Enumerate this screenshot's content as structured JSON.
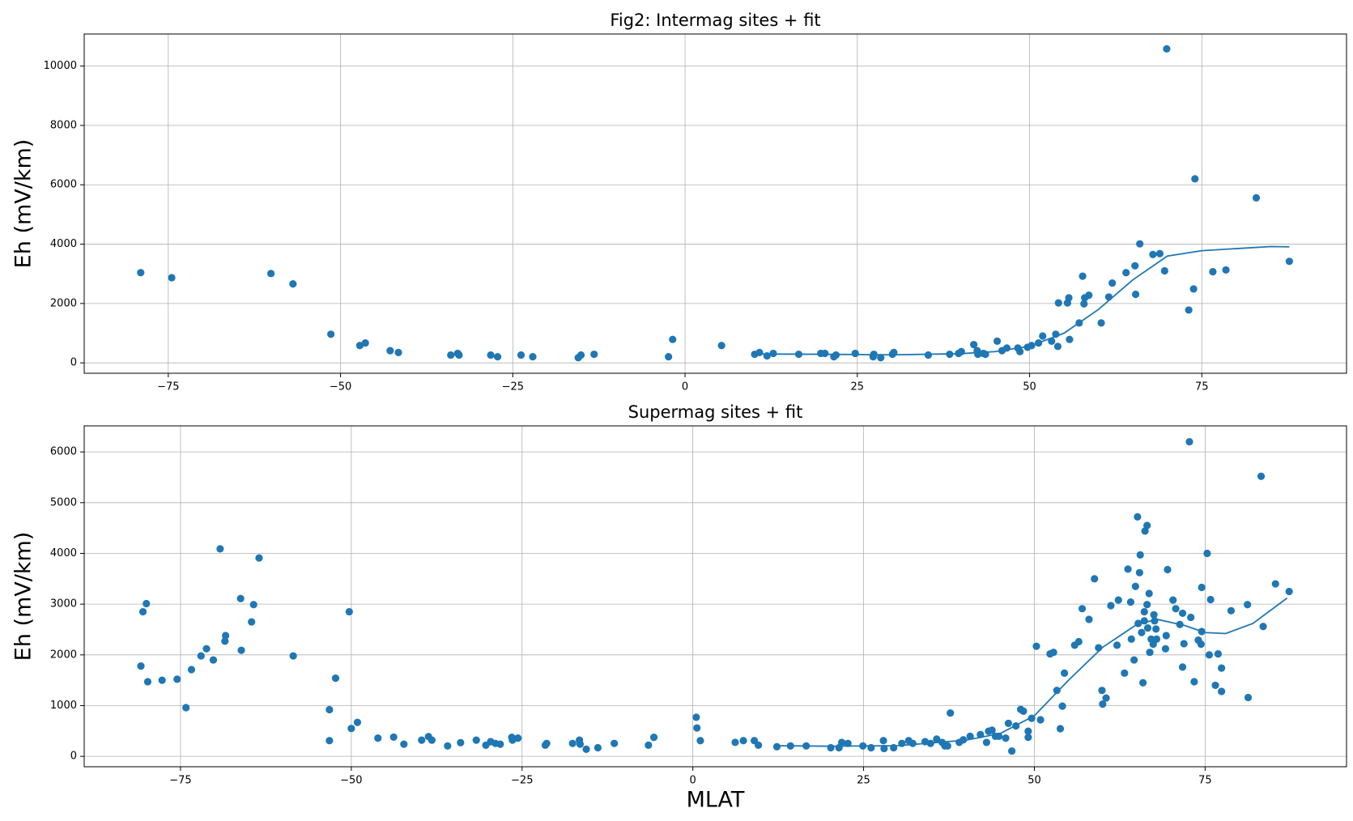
{
  "chart_data": [
    {
      "type": "scatter",
      "title": "Fig2: Intermag sites + fit",
      "ylabel": "Eh (mV/km)",
      "xlim": [
        -87.2,
        96
      ],
      "ylim": [
        -350,
        11080
      ],
      "grid": true,
      "xticks": [
        {
          "value": -75,
          "label": "−75"
        },
        {
          "value": -50,
          "label": "−50"
        },
        {
          "value": -25,
          "label": "−25"
        },
        0,
        25,
        50,
        75
      ],
      "yticks": [
        0,
        2000,
        4000,
        6000,
        8000,
        10000
      ],
      "series": [
        {
          "type": "scatter",
          "color": "#1f77b4",
          "x": [
            -79,
            -74.5,
            -60.1,
            -56.9,
            -51.4,
            -47.2,
            -46.4,
            -42.8,
            -41.6,
            -34,
            -33,
            -32.8,
            -28.2,
            -27.2,
            -23.8,
            -22.1,
            -15.5,
            -15.1,
            -13.2,
            -2.4,
            -1.8,
            5.3,
            10.1,
            10.8,
            11.9,
            12.8,
            16.5,
            19.7,
            20.3,
            21.6,
            21.9,
            24.7,
            27.3,
            27.4,
            28.4,
            30.1,
            30.3,
            35.3,
            38.4,
            39.7,
            40.1,
            41.9,
            42.4,
            42.5,
            43.3,
            43.6,
            45.3,
            46,
            46.7,
            48.3,
            48.6,
            49.7,
            50.3,
            51.3,
            51.9,
            53.2,
            53.8,
            54.1,
            54.2,
            55.5,
            55.7,
            55.8,
            57.2,
            57.7,
            57.9,
            58,
            58.6,
            60.4,
            61.5,
            62,
            64,
            65.3,
            65.4,
            66,
            67.9,
            68.9,
            69.6,
            69.9,
            73.1,
            73.8,
            74,
            76.6,
            78.5,
            82.9,
            87.7
          ],
          "values": [
            3040,
            2870,
            3010,
            2660,
            965,
            585,
            670,
            410,
            350,
            265,
            320,
            265,
            265,
            205,
            265,
            205,
            175,
            265,
            290,
            205,
            790,
            585,
            290,
            350,
            235,
            320,
            290,
            320,
            320,
            205,
            265,
            320,
            205,
            290,
            175,
            290,
            350,
            265,
            290,
            320,
            380,
            615,
            410,
            290,
            320,
            290,
            730,
            410,
            500,
            500,
            380,
            525,
            585,
            670,
            905,
            730,
            965,
            555,
            2020,
            2020,
            2190,
            790,
            1345,
            2920,
            1990,
            2190,
            2280,
            1345,
            2220,
            2690,
            3040,
            3270,
            2310,
            4010,
            3650,
            3680,
            3100,
            10580,
            1780,
            2490,
            6200,
            3070,
            3130,
            5560,
            3420
          ]
        },
        {
          "type": "line",
          "color": "#1f77b4",
          "x": [
            10,
            20,
            30,
            40,
            45,
            50,
            55,
            60,
            65,
            70,
            75,
            80,
            85,
            87.7
          ],
          "values": [
            300,
            290,
            270,
            310,
            380,
            560,
            1000,
            1800,
            2800,
            3600,
            3780,
            3850,
            3920,
            3910
          ]
        }
      ]
    },
    {
      "type": "scatter",
      "title": "Supermag sites + fit",
      "ylabel": "Eh (mV/km)",
      "xlabel": "MLAT",
      "xlim": [
        -89.1,
        95.7
      ],
      "ylim": [
        -205,
        6513
      ],
      "grid": true,
      "xticks": [
        {
          "value": -75,
          "label": "−75"
        },
        {
          "value": -50,
          "label": "−50"
        },
        {
          "value": -25,
          "label": "−25"
        },
        0,
        25,
        50,
        75
      ],
      "yticks": [
        0,
        1000,
        2000,
        3000,
        4000,
        5000,
        6000
      ],
      "series": [
        {
          "type": "scatter",
          "color": "#1f77b4",
          "x": [
            -80.8,
            -80.5,
            -80,
            -79.8,
            -77.7,
            -75.5,
            -74.2,
            -73.4,
            -72,
            -71.2,
            -70.2,
            -69.2,
            -68.5,
            -68.4,
            -66.2,
            -66.1,
            -64.6,
            -64.3,
            -63.5,
            -58.5,
            -53.2,
            -53.2,
            -52.3,
            -50.3,
            -50,
            -49.1,
            -46.1,
            -43.8,
            -42.3,
            -39.7,
            -38.7,
            -38.2,
            -35.9,
            -34,
            -31.7,
            -30.3,
            -29.6,
            -28.9,
            -28.2,
            -26.5,
            -26.4,
            -25.6,
            -21.6,
            -21.4,
            -17.6,
            -16.6,
            -16.5,
            -15.6,
            -13.9,
            -11.5,
            -6.5,
            -5.7,
            0.5,
            0.6,
            1.1,
            6.2,
            7.4,
            9,
            9.6,
            12.3,
            14.3,
            16.6,
            20.2,
            21.4,
            21.8,
            22.7,
            24.9,
            26.1,
            27.9,
            28,
            29.4,
            30.6,
            31.6,
            32.2,
            34,
            34.8,
            35.7,
            36.5,
            36.9,
            37.3,
            37.7,
            39,
            39.6,
            40.6,
            42.1,
            43,
            43.3,
            43.8,
            44.3,
            44.8,
            45.8,
            46.2,
            46.7,
            47.3,
            48,
            48.4,
            49.1,
            49.1,
            49.6,
            50.3,
            50.9,
            52.3,
            52.8,
            53.3,
            53.8,
            54.1,
            54.4,
            55.9,
            56.5,
            57,
            58,
            58.8,
            59.4,
            59.9,
            60,
            60.5,
            61.2,
            62.1,
            62.3,
            63.2,
            63.7,
            64.1,
            64.2,
            64.6,
            64.8,
            65.1,
            65.2,
            65.4,
            65.5,
            65.7,
            65.9,
            66.1,
            66.1,
            66.2,
            66.5,
            66.5,
            66.6,
            66.8,
            66.9,
            67.1,
            67.4,
            67.5,
            67.6,
            67.8,
            67.9,
            69.2,
            69.3,
            69.5,
            70.3,
            70.7,
            71.3,
            71.7,
            71.7,
            71.9,
            72.7,
            72.9,
            73.4,
            74,
            74.4,
            74.5,
            74.5,
            75.3,
            75.6,
            75.8,
            76.5,
            76.9,
            77.4,
            77.4,
            78.8,
            81.2,
            81.3,
            83.2,
            83.5,
            85.3,
            87.3
          ],
          "values": [
            1780,
            2850,
            3010,
            1470,
            1500,
            1520,
            960,
            1710,
            1980,
            2120,
            1900,
            4090,
            2270,
            2380,
            3110,
            2090,
            2650,
            2990,
            3910,
            1980,
            920,
            310,
            1540,
            2850,
            550,
            670,
            360,
            380,
            240,
            320,
            390,
            320,
            205,
            270,
            320,
            220,
            290,
            255,
            240,
            375,
            320,
            360,
            220,
            255,
            255,
            320,
            240,
            140,
            170,
            255,
            220,
            375,
            770,
            560,
            310,
            275,
            310,
            310,
            220,
            190,
            205,
            205,
            170,
            170,
            275,
            255,
            205,
            170,
            310,
            155,
            170,
            255,
            310,
            255,
            290,
            255,
            340,
            275,
            205,
            205,
            855,
            275,
            325,
            395,
            430,
            275,
            495,
            515,
            395,
            395,
            360,
            650,
            105,
            600,
            925,
            890,
            375,
            495,
            750,
            2170,
            720,
            2020,
            2050,
            1300,
            545,
            990,
            1640,
            2190,
            2260,
            2910,
            2700,
            3500,
            2140,
            1300,
            1030,
            1150,
            2970,
            2190,
            3080,
            1640,
            3690,
            3040,
            2310,
            1900,
            3350,
            4720,
            2620,
            3620,
            3970,
            2440,
            1450,
            2850,
            2670,
            4440,
            4550,
            2990,
            2530,
            3210,
            2050,
            2310,
            2210,
            2790,
            2670,
            2510,
            2310,
            2120,
            2380,
            3680,
            3080,
            2910,
            2600,
            1760,
            2820,
            2220,
            6200,
            2740,
            1470,
            2290,
            2210,
            3330,
            2460,
            4000,
            2000,
            3090,
            1400,
            2020,
            1280,
            1740,
            2870,
            2990,
            1160,
            5520,
            2560,
            3400,
            3250
          ]
        },
        {
          "type": "line",
          "color": "#1f77b4",
          "x": [
            12,
            20,
            30,
            40,
            45,
            50,
            55,
            60,
            65,
            68,
            72,
            75,
            78,
            82,
            87
          ],
          "values": [
            210,
            200,
            210,
            320,
            450,
            800,
            1500,
            2150,
            2600,
            2700,
            2580,
            2440,
            2420,
            2620,
            3120
          ]
        }
      ]
    }
  ]
}
